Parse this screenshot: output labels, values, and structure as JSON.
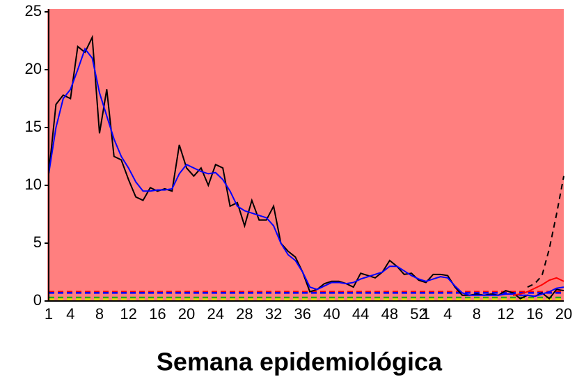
{
  "chart_data": {
    "type": "line",
    "xlabel": "Semana epidemiológica",
    "background": "#ff7f7f",
    "categories": [
      "1",
      null,
      null,
      "4",
      null,
      null,
      null,
      "8",
      null,
      null,
      null,
      "12",
      null,
      null,
      null,
      "16",
      null,
      null,
      null,
      "20",
      null,
      null,
      null,
      "24",
      null,
      null,
      null,
      "28",
      null,
      null,
      null,
      "32",
      null,
      null,
      null,
      "36",
      null,
      null,
      null,
      "40",
      null,
      null,
      null,
      "44",
      null,
      null,
      null,
      "48",
      null,
      null,
      null,
      "52",
      "1",
      null,
      null,
      "4",
      null,
      null,
      null,
      "8",
      null,
      null,
      null,
      "12",
      null,
      null,
      null,
      "16",
      null,
      null,
      null,
      "20"
    ],
    "ylim": [
      0,
      25
    ],
    "yticks": [
      0,
      5,
      10,
      15,
      20,
      25
    ],
    "series": [
      {
        "color": "#000000",
        "dash": false,
        "values": [
          11,
          17,
          17.8,
          17.5,
          22,
          21.5,
          22.8,
          14.5,
          18.3,
          12.5,
          12.2,
          10.5,
          9,
          8.7,
          9.8,
          9.5,
          9.7,
          9.5,
          13.5,
          11.5,
          10.8,
          11.5,
          10,
          11.8,
          11.5,
          8.2,
          8.5,
          6.5,
          8.7,
          7,
          7,
          8.2,
          5,
          4.3,
          3.8,
          2.5,
          0.8,
          1,
          1.5,
          1.7,
          1.7,
          1.5,
          1.2,
          2.4,
          2.2,
          2,
          2.5,
          3.5,
          3,
          2.3,
          2.4,
          1.8,
          1.6,
          2.3,
          2.3,
          2.2,
          1.2,
          0.5,
          0.5,
          0.6,
          0.5,
          0.6,
          0.5,
          0.9,
          0.7,
          0.2,
          0.5,
          0.4,
          0.7,
          0.2,
          1,
          0.9
        ]
      },
      {
        "color": "#0000ff",
        "dash": false,
        "values": [
          11,
          15,
          17.5,
          18.3,
          20,
          21.8,
          21,
          18,
          16,
          14,
          12.5,
          11.5,
          10.3,
          9.5,
          9.5,
          9.6,
          9.6,
          9.7,
          11,
          11.8,
          11.5,
          11.2,
          11,
          11.1,
          10.5,
          9.5,
          8.2,
          7.8,
          7.6,
          7.4,
          7.2,
          6.5,
          5,
          4,
          3.5,
          2.5,
          1.2,
          1,
          1.3,
          1.6,
          1.6,
          1.5,
          1.6,
          1.9,
          2.1,
          2.3,
          2.5,
          3,
          3,
          2.6,
          2.2,
          1.9,
          1.7,
          1.9,
          2.1,
          2,
          1.3,
          0.7,
          0.5,
          0.5,
          0.5,
          0.5,
          0.5,
          0.6,
          0.6,
          0.5,
          0.5,
          0.4,
          0.6,
          0.8,
          1.1,
          1.2
        ]
      },
      {
        "color": "#ff0000",
        "dash": false,
        "values": [
          null,
          null,
          null,
          null,
          null,
          null,
          null,
          null,
          null,
          null,
          null,
          null,
          null,
          null,
          null,
          null,
          null,
          null,
          null,
          null,
          null,
          null,
          null,
          null,
          null,
          null,
          null,
          null,
          null,
          null,
          null,
          null,
          null,
          null,
          null,
          null,
          null,
          null,
          null,
          null,
          null,
          null,
          null,
          null,
          null,
          null,
          null,
          null,
          null,
          null,
          null,
          null,
          null,
          null,
          null,
          null,
          null,
          null,
          null,
          null,
          null,
          null,
          null,
          null,
          0.5,
          0.6,
          0.8,
          1.1,
          1.4,
          1.8,
          2,
          1.7
        ]
      },
      {
        "color": "#000000",
        "dash": true,
        "values": [
          null,
          null,
          null,
          null,
          null,
          null,
          null,
          null,
          null,
          null,
          null,
          null,
          null,
          null,
          null,
          null,
          null,
          null,
          null,
          null,
          null,
          null,
          null,
          null,
          null,
          null,
          null,
          null,
          null,
          null,
          null,
          null,
          null,
          null,
          null,
          null,
          null,
          null,
          null,
          null,
          null,
          null,
          null,
          null,
          null,
          null,
          null,
          null,
          null,
          null,
          null,
          null,
          null,
          null,
          null,
          null,
          null,
          null,
          null,
          null,
          null,
          null,
          null,
          null,
          null,
          null,
          1.2,
          1.5,
          2.2,
          4.5,
          7.5,
          10.8
        ]
      }
    ],
    "thresholds": [
      {
        "value": 0.8,
        "color": "#ff0000"
      },
      {
        "value": 0.7,
        "color": "#0000ff"
      },
      {
        "value": 0.3,
        "color": "#22aa22"
      },
      {
        "value": 0.15,
        "color": "#dddd00"
      }
    ]
  }
}
